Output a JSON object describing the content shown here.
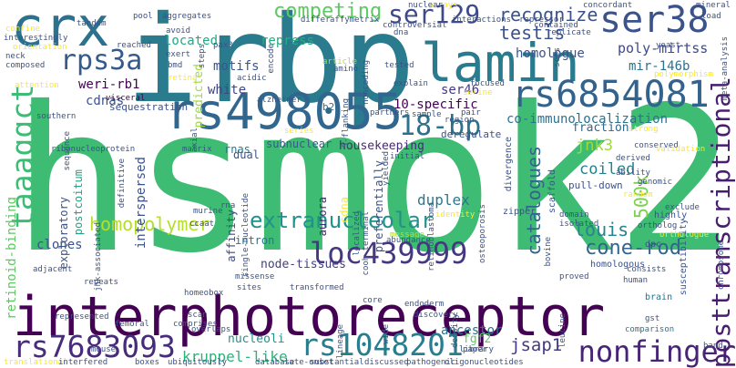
{
  "word_cloud": {
    "background": "#ffffff",
    "palette": [
      "#440154",
      "#3b528b",
      "#21918c",
      "#5ec962",
      "#fde725"
    ],
    "words": [
      {
        "text": "hsmok2",
        "color": "#3fbc73"
      },
      {
        "text": "interphotoreceptor",
        "color": "#440154"
      },
      {
        "text": "irbp",
        "color": "#2a7b8e"
      },
      {
        "text": "lamin",
        "color": "#297b8e"
      },
      {
        "text": "crx",
        "color": "#2c728e"
      },
      {
        "text": "rs498055",
        "color": "#31668e"
      },
      {
        "text": "rs6854081",
        "color": "#33638d"
      },
      {
        "text": "loc439999",
        "color": "#453781"
      },
      {
        "text": "rs7683093",
        "color": "#472c7a"
      },
      {
        "text": "rs1048201",
        "color": "#287d8e"
      },
      {
        "text": "taaaggct",
        "color": "#3dbc74"
      },
      {
        "text": "nonfinger",
        "color": "#482475"
      },
      {
        "text": "posttranscriptional",
        "color": "#481c6e"
      },
      {
        "text": "ser38",
        "color": "#3b528b"
      },
      {
        "text": "18-bp",
        "color": "#2d718e"
      },
      {
        "text": "ser129",
        "color": "#3e4a89"
      },
      {
        "text": "rps3a",
        "color": "#375a8c"
      },
      {
        "text": "extranucleolar",
        "color": "#21918c"
      },
      {
        "text": "homopolymer",
        "color": "#b5de2b"
      },
      {
        "text": "cone-rod",
        "color": "#31668e"
      },
      {
        "text": "competing",
        "color": "#5ec962"
      },
      {
        "text": "recognize",
        "color": "#3b528b"
      },
      {
        "text": "testis",
        "color": "#3b528b"
      },
      {
        "text": "louis",
        "color": "#25848e"
      },
      {
        "text": "catalogues",
        "color": "#32648e"
      },
      {
        "text": "500k",
        "color": "#7ad151"
      },
      {
        "text": "jnk3",
        "color": "#a0da39"
      },
      {
        "text": "coiled",
        "color": "#26828e"
      },
      {
        "text": "jsap1",
        "color": "#443983"
      },
      {
        "text": "kruppel-like",
        "color": "#2db27d"
      },
      {
        "text": "duplex",
        "color": "#2a788e"
      },
      {
        "text": "poly-mirtss",
        "color": "#3e4a89"
      },
      {
        "text": "weri-rb1",
        "color": "#440154"
      },
      {
        "text": "mir-146b",
        "color": "#2c728e"
      },
      {
        "text": "homologue",
        "color": "#3b528b"
      },
      {
        "text": "co-immunolocalization",
        "color": "#2c728e"
      },
      {
        "text": "motifs",
        "color": "#39568c"
      },
      {
        "text": "located",
        "color": "#22a884"
      },
      {
        "text": "repress",
        "color": "#27ad81"
      },
      {
        "text": "white",
        "color": "#404688"
      },
      {
        "text": "retinoid-binding",
        "color": "#5ec962"
      },
      {
        "text": "10-specific",
        "color": "#440154"
      },
      {
        "text": "ser46",
        "color": "#443983"
      },
      {
        "text": "predicted",
        "color": "#9fda3a"
      },
      {
        "text": "cdnas",
        "color": "#3b528b"
      },
      {
        "text": "interspersed",
        "color": "#3b528b"
      },
      {
        "text": "clones",
        "color": "#3b528b"
      },
      {
        "text": "ancestor",
        "color": "#2c728e"
      },
      {
        "text": "node-tissues",
        "color": "#433e85"
      },
      {
        "text": "nucleoli",
        "color": "#21918c"
      },
      {
        "text": "fgf2",
        "color": "#5ec962"
      },
      {
        "text": "fraction",
        "color": "#31688e"
      },
      {
        "text": "housekeeping",
        "color": "#482878"
      },
      {
        "text": "subnuclear",
        "color": "#375a8c"
      },
      {
        "text": "preferentially",
        "color": "#3b528b"
      },
      {
        "text": "affinity",
        "color": "#3e4a89"
      },
      {
        "text": "exploratory",
        "color": "#3b528b"
      },
      {
        "text": "intron",
        "color": "#2c728e"
      },
      {
        "text": "postcoitum",
        "color": "#20a486"
      },
      {
        "text": "rnas",
        "color": "#2a788e"
      },
      {
        "text": "dual",
        "color": "#3b528b"
      },
      {
        "text": "aurora",
        "color": "#482677"
      },
      {
        "text": "cdna",
        "color": "#fde725"
      },
      {
        "text": "b2",
        "color": "#2c728e"
      },
      {
        "text": "pull-down",
        "color": "#3b528b"
      },
      {
        "text": "deregulate",
        "color": "#3b528b"
      },
      {
        "text": "sequestration",
        "color": "#3b528b"
      },
      {
        "text": "visceral",
        "color": "#440154"
      },
      {
        "text": "southern",
        "color": "#3b528b"
      },
      {
        "text": "sample",
        "color": "#3b528b"
      },
      {
        "text": "zipper",
        "color": "#3b528b"
      },
      {
        "text": "divergence",
        "color": "#3b528b"
      },
      {
        "text": "scaffold",
        "color": "#3b528b"
      },
      {
        "text": "susceptibility",
        "color": "#3b528b"
      },
      {
        "text": "homologous",
        "color": "#3b528b"
      },
      {
        "text": "dpc",
        "color": "#3b528b"
      },
      {
        "text": "highly",
        "color": "#3b528b"
      },
      {
        "text": "brain",
        "color": "#2c728e"
      },
      {
        "text": "gst",
        "color": "#3b528b"
      },
      {
        "text": "comparison",
        "color": "#2c728e"
      },
      {
        "text": "band",
        "color": "#3b528b"
      },
      {
        "text": "scan",
        "color": "#3b528b"
      },
      {
        "text": "leucine",
        "color": "#3b528b"
      },
      {
        "text": "paper",
        "color": "#3b528b"
      },
      {
        "text": "core",
        "color": "#3b528b"
      },
      {
        "text": "femoral",
        "color": "#3b528b"
      },
      {
        "text": "homeobox",
        "color": "#3b528b"
      },
      {
        "text": "sites",
        "color": "#3b528b"
      },
      {
        "text": "transformed",
        "color": "#3b528b"
      },
      {
        "text": "localized",
        "color": "#3b528b"
      },
      {
        "text": "cooh-terminal",
        "color": "#3b528b"
      },
      {
        "text": "retinoblastoma",
        "color": "#3b528b"
      },
      {
        "text": "identity",
        "color": "#fde725"
      },
      {
        "text": "yielded",
        "color": "#3b528b"
      },
      {
        "text": "initial",
        "color": "#3b528b"
      },
      {
        "text": "message",
        "color": "#b5de2b"
      },
      {
        "text": "tandem",
        "color": "#3b528b"
      },
      {
        "text": "reached",
        "color": "#3b528b"
      },
      {
        "text": "pool",
        "color": "#3b528b"
      },
      {
        "text": "aggregates",
        "color": "#3b528b"
      },
      {
        "text": "avoid",
        "color": "#3b528b"
      },
      {
        "text": "bmd",
        "color": "#3b528b"
      },
      {
        "text": "pax3",
        "color": "#3b528b"
      },
      {
        "text": "encode",
        "color": "#3b528b"
      },
      {
        "text": "acidic",
        "color": "#3b528b"
      },
      {
        "text": "amino",
        "color": "#3b528b"
      },
      {
        "text": "tested",
        "color": "#3b528b"
      },
      {
        "text": "article",
        "color": "#b5de2b"
      },
      {
        "text": "dna",
        "color": "#3b528b"
      },
      {
        "text": "alzheimer",
        "color": "#3b528b"
      },
      {
        "text": "noncoding",
        "color": "#3b528b"
      },
      {
        "text": "5-flanking",
        "color": "#3b528b"
      },
      {
        "text": "differ",
        "color": "#3b528b"
      },
      {
        "text": "affymetrix",
        "color": "#3b528b"
      },
      {
        "text": "controversial",
        "color": "#3b528b"
      },
      {
        "text": "interactions",
        "color": "#3b528b"
      },
      {
        "text": "repressor",
        "color": "#3b528b"
      },
      {
        "text": "replicate",
        "color": "#3b528b"
      },
      {
        "text": "concordant",
        "color": "#3b528b"
      },
      {
        "text": "mineral",
        "color": "#3b528b"
      },
      {
        "text": "load",
        "color": "#3b528b"
      },
      {
        "text": "sets",
        "color": "#3b528b"
      },
      {
        "text": "meta-analysis",
        "color": "#3b528b"
      },
      {
        "text": "explain",
        "color": "#3b528b"
      },
      {
        "text": "focused",
        "color": "#3b528b"
      },
      {
        "text": "genomic",
        "color": "#3b528b"
      },
      {
        "text": "derived",
        "color": "#3b528b"
      },
      {
        "text": "ability",
        "color": "#3b528b"
      },
      {
        "text": "random",
        "color": "#fde725"
      },
      {
        "text": "strong",
        "color": "#fde725"
      },
      {
        "text": "conserved",
        "color": "#3b528b"
      },
      {
        "text": "ortholog",
        "color": "#3b528b"
      },
      {
        "text": "orthologue",
        "color": "#fde725"
      },
      {
        "text": "exclude",
        "color": "#3b528b"
      },
      {
        "text": "domain",
        "color": "#3b528b"
      },
      {
        "text": "isolated",
        "color": "#3b528b"
      },
      {
        "text": "proved",
        "color": "#3b528b"
      },
      {
        "text": "bovine",
        "color": "#3b528b"
      },
      {
        "text": "human",
        "color": "#3b528b"
      },
      {
        "text": "chromosome",
        "color": "#3b528b"
      },
      {
        "text": "osteoporosis",
        "color": "#3b528b"
      },
      {
        "text": "endoderm",
        "color": "#3b528b"
      },
      {
        "text": "discovery",
        "color": "#3b528b"
      },
      {
        "text": "library",
        "color": "#3b528b"
      },
      {
        "text": "density",
        "color": "#3b528b"
      },
      {
        "text": "represented",
        "color": "#3b528b"
      },
      {
        "text": "adjacent",
        "color": "#3b528b"
      },
      {
        "text": "missense",
        "color": "#3b528b"
      },
      {
        "text": "single-nucleotide",
        "color": "#3b528b"
      },
      {
        "text": "repeats",
        "color": "#3b528b"
      },
      {
        "text": "ccaat",
        "color": "#3b528b"
      },
      {
        "text": "axial",
        "color": "#3b528b"
      },
      {
        "text": "murine",
        "color": "#3b528b"
      },
      {
        "text": "rna",
        "color": "#3b528b"
      },
      {
        "text": "matrix",
        "color": "#3b528b"
      },
      {
        "text": "jnk-associated",
        "color": "#3b528b"
      },
      {
        "text": "definitive",
        "color": "#3b528b"
      },
      {
        "text": "sequence",
        "color": "#3b528b"
      },
      {
        "text": "ribonucleoprotein",
        "color": "#3b528b"
      },
      {
        "text": "comprises",
        "color": "#3b528b"
      },
      {
        "text": "overlaps",
        "color": "#3b528b"
      },
      {
        "text": "lineage",
        "color": "#3b528b"
      },
      {
        "text": "wide",
        "color": "#3b528b"
      },
      {
        "text": "ubiquitously",
        "color": "#3b528b"
      },
      {
        "text": "database",
        "color": "#3b528b"
      },
      {
        "text": "late-onset",
        "color": "#3b528b"
      },
      {
        "text": "substantial",
        "color": "#3b528b"
      },
      {
        "text": "discussed",
        "color": "#3b528b"
      },
      {
        "text": "pathogenic",
        "color": "#3b528b"
      },
      {
        "text": "oligonucleotides",
        "color": "#3b528b"
      },
      {
        "text": "translational",
        "color": "#fde725"
      },
      {
        "text": "interfered",
        "color": "#3b528b"
      },
      {
        "text": "boxes",
        "color": "#3b528b"
      },
      {
        "text": "neck",
        "color": "#3b528b"
      },
      {
        "text": "composed",
        "color": "#3b528b"
      },
      {
        "text": "orientation",
        "color": "#fde725"
      },
      {
        "text": "attention",
        "color": "#fde725"
      },
      {
        "text": "confine",
        "color": "#fde725"
      },
      {
        "text": "series",
        "color": "#fde725"
      },
      {
        "text": "partners",
        "color": "#3b528b"
      },
      {
        "text": "region",
        "color": "#3b528b"
      },
      {
        "text": "pair",
        "color": "#3b528b"
      },
      {
        "text": "exert",
        "color": "#3b528b"
      },
      {
        "text": "retina",
        "color": "#fde725"
      },
      {
        "text": "steps",
        "color": "#3b528b"
      },
      {
        "text": "interestingly",
        "color": "#3b528b"
      },
      {
        "text": "serine",
        "color": "#fde725"
      },
      {
        "text": "arrays",
        "color": "#fde725"
      },
      {
        "text": "contained",
        "color": "#3b528b"
      },
      {
        "text": "yeast",
        "color": "#3b528b"
      },
      {
        "text": "polymorphism",
        "color": "#fde725"
      },
      {
        "text": "validation",
        "color": "#fde725"
      },
      {
        "text": "consists",
        "color": "#3b528b"
      },
      {
        "text": "abundance",
        "color": "#3b528b"
      },
      {
        "text": "mouse",
        "color": "#3b528b"
      },
      {
        "text": "nuclear",
        "color": "#3b528b"
      },
      {
        "text": "ago",
        "color": "#3b528b"
      }
    ]
  }
}
